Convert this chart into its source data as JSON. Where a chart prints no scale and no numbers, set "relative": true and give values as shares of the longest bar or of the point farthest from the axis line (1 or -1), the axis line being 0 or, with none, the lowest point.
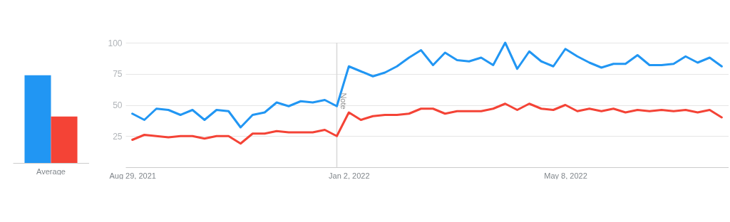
{
  "chart_data": [
    {
      "type": "bar",
      "categories": [
        "Average"
      ],
      "relative": true,
      "tick_labels": "x",
      "series": [
        {
          "color": "#2196f3",
          "values": [
            1
          ]
        },
        {
          "color": "#f44336",
          "values": [
            0.53
          ]
        }
      ]
    },
    {
      "type": "line",
      "x": [
        "2021-08-29",
        "2021-09-05",
        "2021-09-12",
        "2021-09-19",
        "2021-09-26",
        "2021-10-03",
        "2021-10-10",
        "2021-10-17",
        "2021-10-24",
        "2021-10-31",
        "2021-11-07",
        "2021-11-14",
        "2021-11-21",
        "2021-11-28",
        "2021-12-05",
        "2021-12-12",
        "2021-12-19",
        "2021-12-26",
        "2022-01-02",
        "2022-01-09",
        "2022-01-16",
        "2022-01-23",
        "2022-01-30",
        "2022-02-06",
        "2022-02-13",
        "2022-02-20",
        "2022-02-27",
        "2022-03-06",
        "2022-03-13",
        "2022-03-20",
        "2022-03-27",
        "2022-04-03",
        "2022-04-10",
        "2022-04-17",
        "2022-04-24",
        "2022-05-01",
        "2022-05-08",
        "2022-05-15",
        "2022-05-22",
        "2022-05-29",
        "2022-06-05",
        "2022-06-12",
        "2022-06-19",
        "2022-06-26",
        "2022-07-03",
        "2022-07-10",
        "2022-07-17",
        "2022-07-24",
        "2022-07-31",
        "2022-08-07"
      ],
      "series": [
        {
          "color": "#2196f3",
          "values": [
            43,
            38,
            47,
            46,
            42,
            46,
            38,
            46,
            45,
            32,
            42,
            44,
            52,
            49,
            53,
            52,
            54,
            49,
            81,
            77,
            73,
            76,
            81,
            88,
            94,
            82,
            92,
            86,
            85,
            88,
            82,
            100,
            79,
            93,
            85,
            81,
            95,
            89,
            84,
            80,
            83,
            83,
            90,
            82,
            82,
            83,
            89,
            84,
            88,
            81
          ]
        },
        {
          "color": "#f44336",
          "values": [
            22,
            26,
            25,
            24,
            25,
            25,
            23,
            25,
            25,
            19,
            27,
            27,
            29,
            28,
            28,
            28,
            30,
            25,
            44,
            38,
            41,
            42,
            42,
            43,
            47,
            47,
            43,
            45,
            45,
            45,
            47,
            51,
            46,
            51,
            47,
            46,
            50,
            45,
            47,
            45,
            47,
            44,
            46,
            45,
            46,
            45,
            46,
            44,
            46,
            40
          ]
        }
      ],
      "xlim": [
        "2021-08-25",
        "2022-08-11"
      ],
      "xticks": [
        {
          "value": "2021-08-29",
          "label": "Aug 29, 2021"
        },
        {
          "value": "2022-01-02",
          "label": "Jan 2, 2022"
        },
        {
          "value": "2022-05-08",
          "label": "May 8, 2022"
        }
      ],
      "ylim": [
        0,
        100
      ],
      "yticks": [
        25,
        50,
        75,
        100
      ],
      "grid": "y",
      "ref_lines": [
        {
          "axis": "x",
          "value": "2021-12-26",
          "label": "Note"
        }
      ]
    }
  ]
}
